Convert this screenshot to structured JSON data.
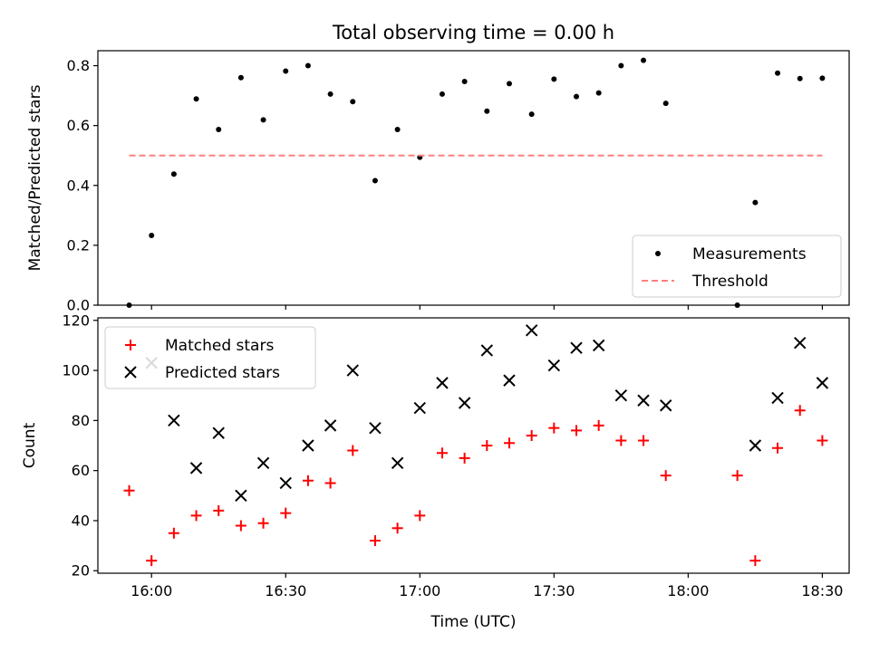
{
  "chart_data": [
    {
      "type": "scatter",
      "title": "Total observing time = 0.00 h",
      "xlabel": "",
      "ylabel": "Matched/Predicted stars",
      "xlim": [
        "15:48",
        "18:36"
      ],
      "ylim": [
        0,
        0.85
      ],
      "yticks": [
        "0.0",
        "0.2",
        "0.4",
        "0.6",
        "0.8"
      ],
      "legend_position": "lower-right",
      "series": [
        {
          "name": "Measurements",
          "marker": "dot",
          "color": "#000000",
          "x": [
            "15:55",
            "16:00",
            "16:05",
            "16:10",
            "16:15",
            "16:20",
            "16:25",
            "16:30",
            "16:35",
            "16:40",
            "16:45",
            "16:50",
            "16:55",
            "17:00",
            "17:05",
            "17:10",
            "17:15",
            "17:20",
            "17:25",
            "17:30",
            "17:35",
            "17:40",
            "17:45",
            "17:50",
            "17:55",
            "18:11",
            "18:15",
            "18:20",
            "18:25",
            "18:30"
          ],
          "y": [
            0.0,
            0.233,
            0.438,
            0.689,
            0.587,
            0.76,
            0.619,
            0.782,
            0.8,
            0.705,
            0.68,
            0.416,
            0.587,
            0.494,
            0.705,
            0.747,
            0.648,
            0.74,
            0.638,
            0.755,
            0.697,
            0.709,
            0.8,
            0.818,
            0.674,
            0.0,
            0.343,
            0.775,
            0.757,
            0.758
          ]
        },
        {
          "name": "Threshold",
          "line_style": "dashed",
          "color": "#ff8080",
          "x": [
            "15:55",
            "18:30"
          ],
          "y": [
            0.5,
            0.5
          ]
        }
      ]
    },
    {
      "type": "scatter",
      "title": "",
      "xlabel": "Time (UTC)",
      "ylabel": "Count",
      "xlim": [
        "15:48",
        "18:36"
      ],
      "ylim": [
        19,
        121
      ],
      "xticks": [
        "16:00",
        "16:30",
        "17:00",
        "17:30",
        "18:00",
        "18:30"
      ],
      "yticks": [
        "20",
        "40",
        "60",
        "80",
        "100",
        "120"
      ],
      "legend_position": "upper-left",
      "series": [
        {
          "name": "Matched stars",
          "marker": "plus",
          "color": "#ff0000",
          "x": [
            "15:55",
            "16:00",
            "16:05",
            "16:10",
            "16:15",
            "16:20",
            "16:25",
            "16:30",
            "16:35",
            "16:40",
            "16:45",
            "16:50",
            "16:55",
            "17:00",
            "17:05",
            "17:10",
            "17:15",
            "17:20",
            "17:25",
            "17:30",
            "17:35",
            "17:40",
            "17:45",
            "17:50",
            "17:55",
            "18:11",
            "18:15",
            "18:20",
            "18:25",
            "18:30"
          ],
          "y": [
            52,
            24,
            35,
            42,
            44,
            38,
            39,
            43,
            56,
            55,
            68,
            32,
            37,
            42,
            67,
            65,
            70,
            71,
            74,
            77,
            76,
            78,
            72,
            72,
            58,
            58,
            24,
            69,
            84,
            72
          ]
        },
        {
          "name": "Predicted stars",
          "marker": "x",
          "color": "#000000",
          "x": [
            "16:00",
            "16:05",
            "16:10",
            "16:15",
            "16:20",
            "16:25",
            "16:30",
            "16:35",
            "16:40",
            "16:45",
            "16:50",
            "16:55",
            "17:00",
            "17:05",
            "17:10",
            "17:15",
            "17:20",
            "17:25",
            "17:30",
            "17:35",
            "17:40",
            "17:45",
            "17:50",
            "17:55",
            "18:15",
            "18:20",
            "18:25",
            "18:30"
          ],
          "y": [
            103,
            80,
            61,
            75,
            50,
            63,
            55,
            70,
            78,
            100,
            77,
            63,
            85,
            95,
            87,
            108,
            96,
            116,
            102,
            109,
            110,
            90,
            88,
            86,
            70,
            89,
            111,
            95
          ]
        }
      ]
    }
  ]
}
